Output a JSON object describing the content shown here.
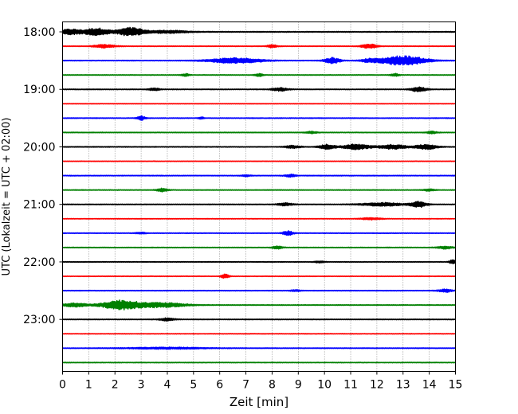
{
  "chart_data": {
    "type": "line",
    "title": "",
    "xlabel": "Zeit  [min]",
    "ylabel": "UTC (Lokalzeit = UTC + 02:00)",
    "xlim": [
      0,
      15
    ],
    "x_ticks": [
      0,
      1,
      2,
      3,
      4,
      5,
      6,
      7,
      8,
      9,
      10,
      11,
      12,
      13,
      14,
      15
    ],
    "y_ticks": [
      "18:00",
      "19:00",
      "20:00",
      "21:00",
      "22:00",
      "23:00"
    ],
    "grid": "vertical-dotted",
    "trace_interval_min": 15,
    "color_cycle": [
      "#000000",
      "#ff0000",
      "#0000ff",
      "#008000"
    ],
    "series": [
      {
        "start": "18:00",
        "amp": 0.5,
        "events": [
          [
            0.3,
            1.0,
            0.4
          ],
          [
            1.3,
            1.4,
            0.5
          ],
          [
            2.6,
            1.6,
            0.5
          ],
          [
            4.0,
            0.5,
            0.8
          ]
        ]
      },
      {
        "start": "18:15",
        "amp": 0.4,
        "events": [
          [
            1.6,
            0.6,
            0.4
          ],
          [
            8.0,
            0.5,
            0.2
          ],
          [
            11.7,
            0.8,
            0.3
          ]
        ]
      },
      {
        "start": "18:30",
        "amp": 0.4,
        "events": [
          [
            6.6,
            1.0,
            1.0
          ],
          [
            10.3,
            1.1,
            0.3
          ],
          [
            11.7,
            0.6,
            0.3
          ],
          [
            13.0,
            1.8,
            0.9
          ]
        ]
      },
      {
        "start": "18:45",
        "amp": 0.4,
        "events": [
          [
            4.7,
            0.5,
            0.15
          ],
          [
            7.5,
            0.5,
            0.15
          ],
          [
            12.7,
            0.5,
            0.15
          ]
        ]
      },
      {
        "start": "19:00",
        "amp": 0.4,
        "events": [
          [
            3.5,
            0.5,
            0.2
          ],
          [
            8.3,
            0.6,
            0.3
          ],
          [
            13.6,
            0.9,
            0.3
          ]
        ]
      },
      {
        "start": "19:15",
        "amp": 0.3,
        "events": []
      },
      {
        "start": "19:30",
        "amp": 0.4,
        "events": [
          [
            3.0,
            0.8,
            0.15
          ],
          [
            5.3,
            0.4,
            0.1
          ]
        ]
      },
      {
        "start": "19:45",
        "amp": 0.4,
        "events": [
          [
            9.5,
            0.4,
            0.2
          ],
          [
            14.1,
            0.4,
            0.2
          ]
        ]
      },
      {
        "start": "20:00",
        "amp": 0.4,
        "events": [
          [
            8.8,
            0.5,
            0.3
          ],
          [
            10.1,
            0.9,
            0.3
          ],
          [
            11.2,
            1.0,
            0.5
          ],
          [
            12.6,
            0.8,
            0.6
          ],
          [
            13.9,
            0.9,
            0.4
          ]
        ]
      },
      {
        "start": "20:15",
        "amp": 0.3,
        "events": []
      },
      {
        "start": "20:30",
        "amp": 0.4,
        "events": [
          [
            7.0,
            0.3,
            0.2
          ],
          [
            8.7,
            0.5,
            0.2
          ]
        ]
      },
      {
        "start": "20:45",
        "amp": 0.4,
        "events": [
          [
            3.8,
            0.7,
            0.2
          ],
          [
            14.0,
            0.4,
            0.2
          ]
        ]
      },
      {
        "start": "21:00",
        "amp": 0.4,
        "events": [
          [
            8.5,
            0.5,
            0.3
          ],
          [
            12.2,
            0.6,
            0.8
          ],
          [
            13.6,
            1.1,
            0.3
          ]
        ]
      },
      {
        "start": "21:15",
        "amp": 0.3,
        "events": [
          [
            11.8,
            0.4,
            0.4
          ]
        ]
      },
      {
        "start": "21:30",
        "amp": 0.4,
        "events": [
          [
            3.0,
            0.3,
            0.2
          ],
          [
            8.6,
            0.8,
            0.2
          ]
        ]
      },
      {
        "start": "21:45",
        "amp": 0.4,
        "events": [
          [
            8.2,
            0.5,
            0.2
          ],
          [
            14.6,
            0.5,
            0.3
          ]
        ]
      },
      {
        "start": "22:00",
        "amp": 0.4,
        "events": [
          [
            9.8,
            0.3,
            0.2
          ],
          [
            14.9,
            0.7,
            0.15
          ]
        ]
      },
      {
        "start": "22:15",
        "amp": 0.3,
        "events": [
          [
            6.2,
            0.8,
            0.15
          ]
        ]
      },
      {
        "start": "22:30",
        "amp": 0.4,
        "events": [
          [
            8.9,
            0.3,
            0.2
          ],
          [
            14.6,
            0.6,
            0.25
          ]
        ]
      },
      {
        "start": "22:45",
        "amp": 0.4,
        "events": [
          [
            0.5,
            0.7,
            0.5
          ],
          [
            2.2,
            1.8,
            0.7
          ],
          [
            3.7,
            0.9,
            1.0
          ]
        ]
      },
      {
        "start": "23:00",
        "amp": 0.4,
        "events": [
          [
            4.0,
            0.5,
            0.3
          ]
        ]
      },
      {
        "start": "23:15",
        "amp": 0.3,
        "events": []
      },
      {
        "start": "23:30",
        "amp": 0.4,
        "events": [
          [
            4.0,
            0.3,
            1.5
          ]
        ]
      },
      {
        "start": "23:45",
        "amp": 0.3,
        "events": []
      }
    ]
  }
}
